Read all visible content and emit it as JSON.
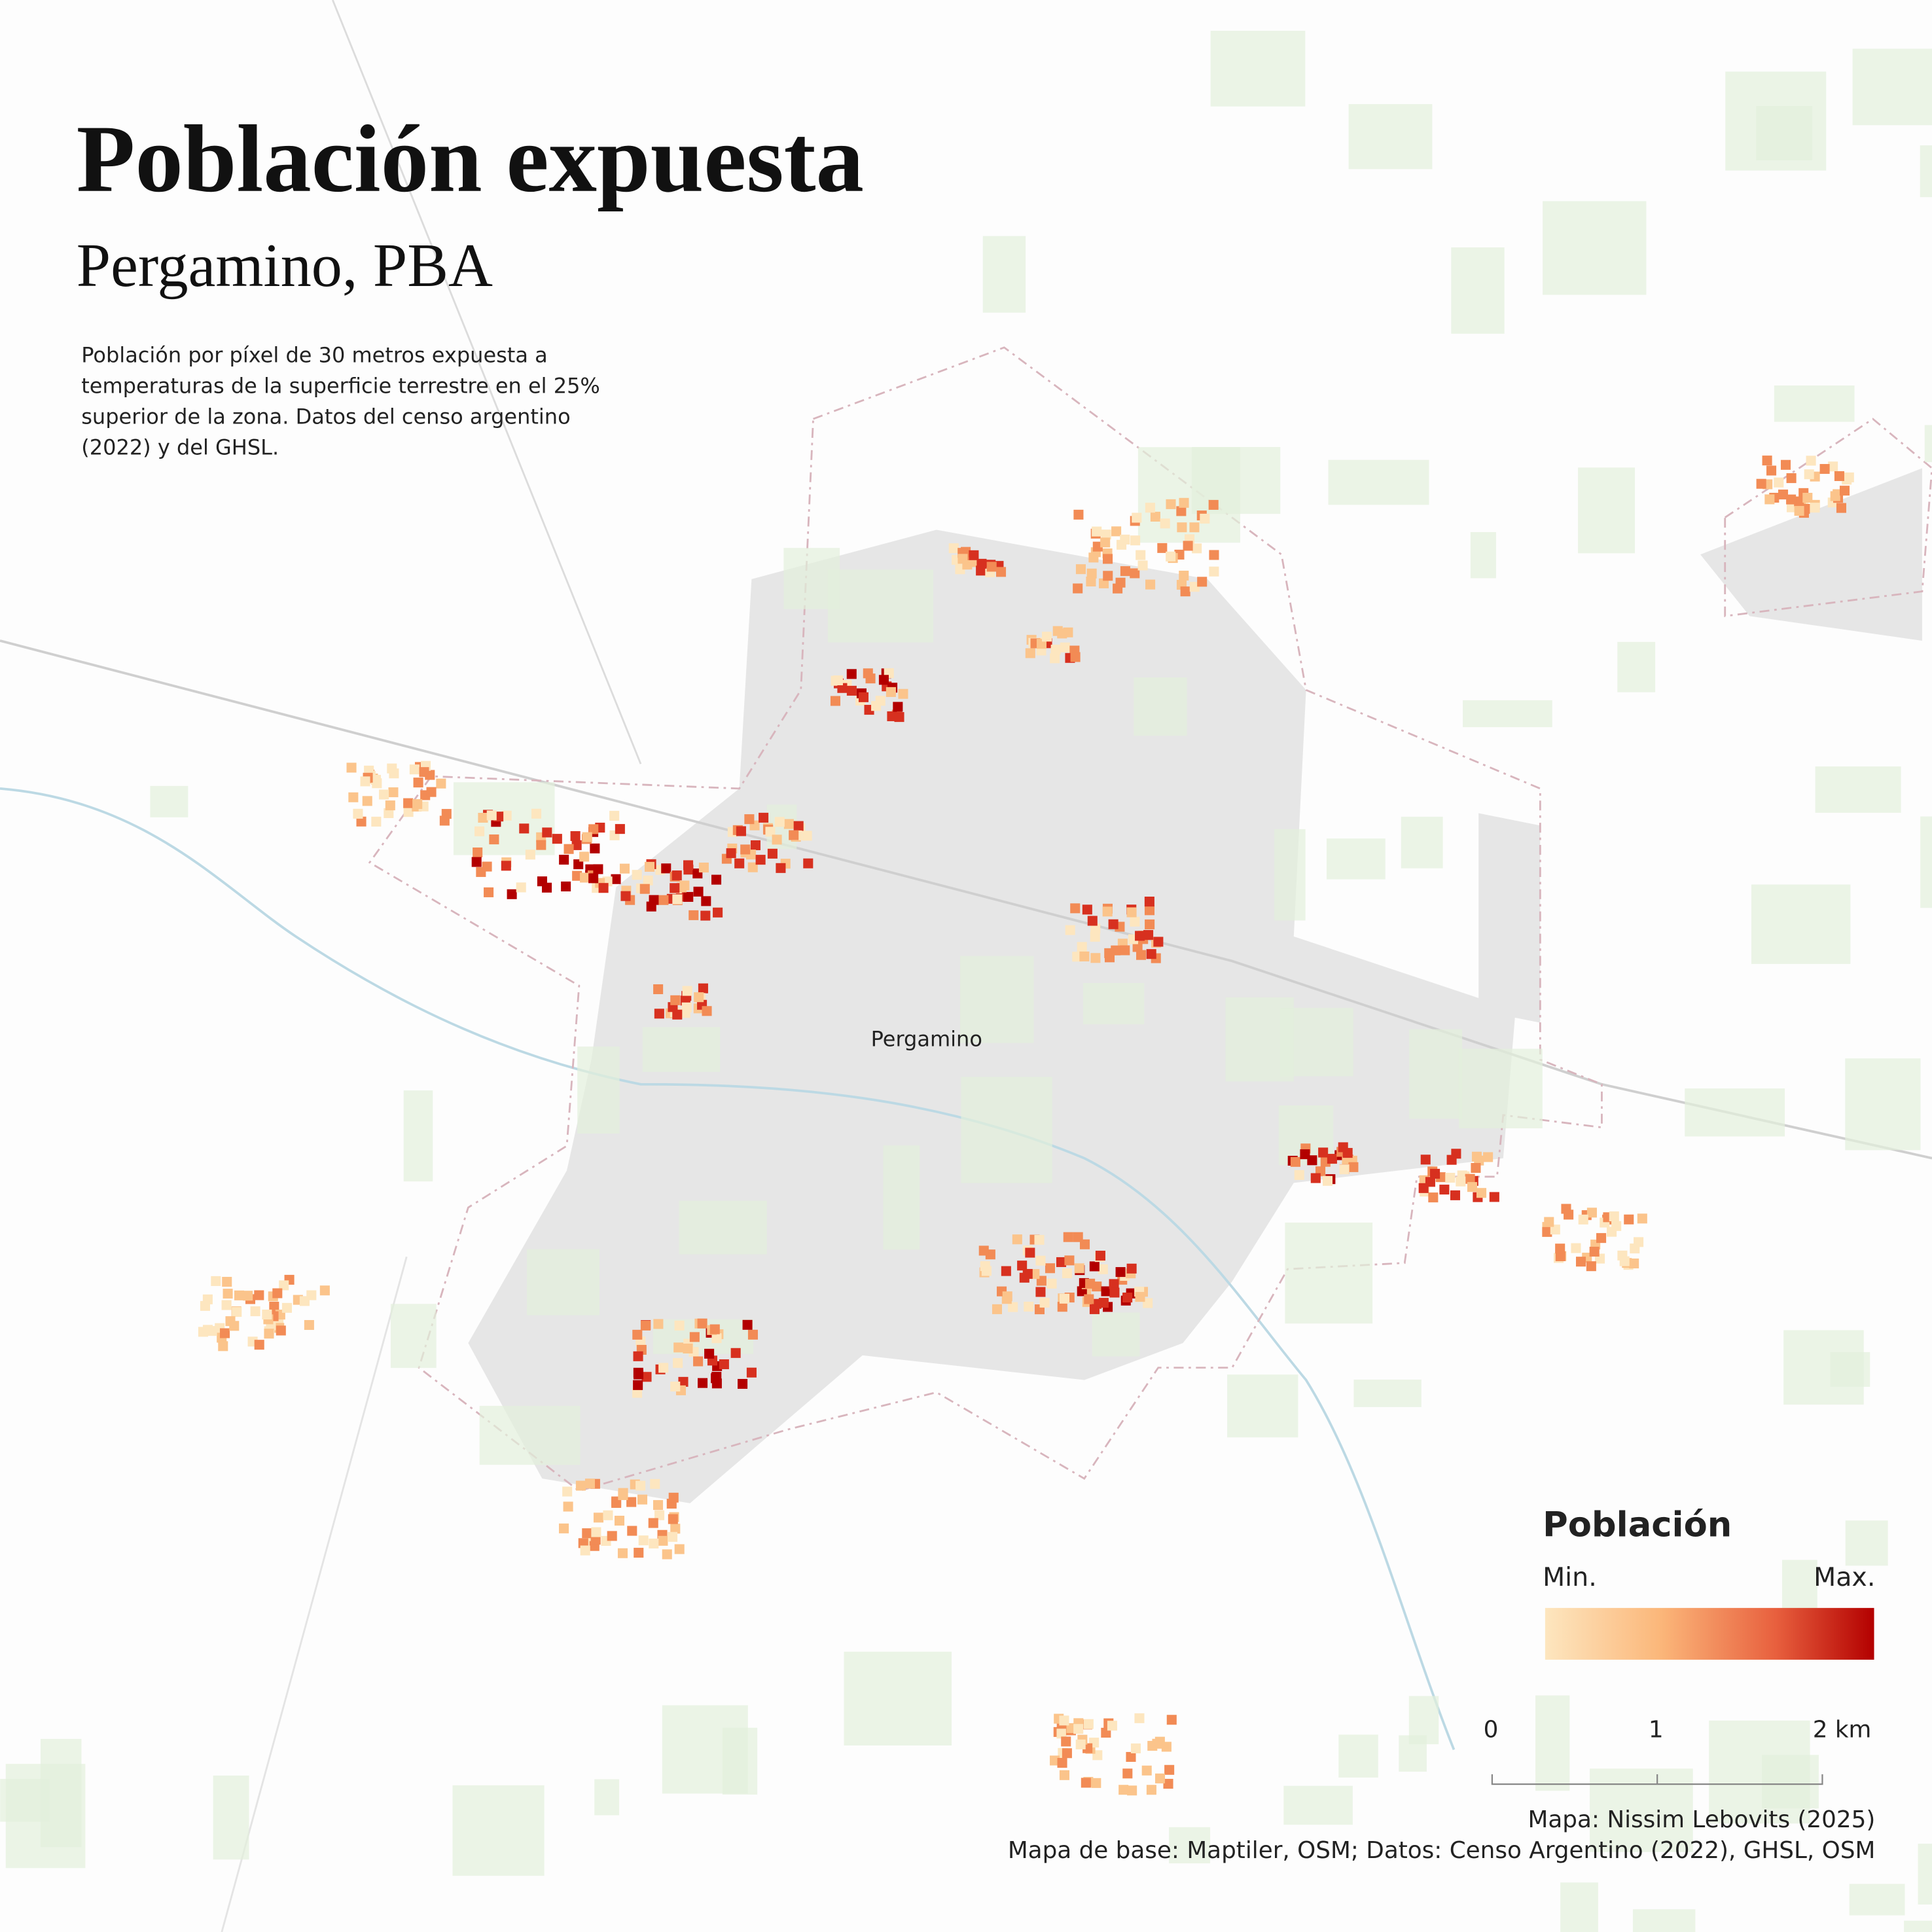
{
  "header": {
    "title": "Población expuesta",
    "subtitle": "Pergamino, PBA",
    "description": [
      "Población por píxel de 30 metros expuesta a",
      "temperaturas de la superficie terrestre en el 25%",
      "superior de la zona. Datos del censo argentino",
      "(2022) y del GHSL."
    ]
  },
  "map": {
    "place_label": "Pergamino"
  },
  "legend": {
    "title": "Población",
    "min_label": "Min.",
    "max_label": "Max."
  },
  "scale_bar": {
    "labels": [
      "0",
      "1",
      "2 km"
    ]
  },
  "credits": [
    "Mapa: Nissim Lebovits (2025)",
    "Mapa de base: Maptiler, OSM; Datos: Censo Argentino (2022), GHSL, OSM"
  ]
}
